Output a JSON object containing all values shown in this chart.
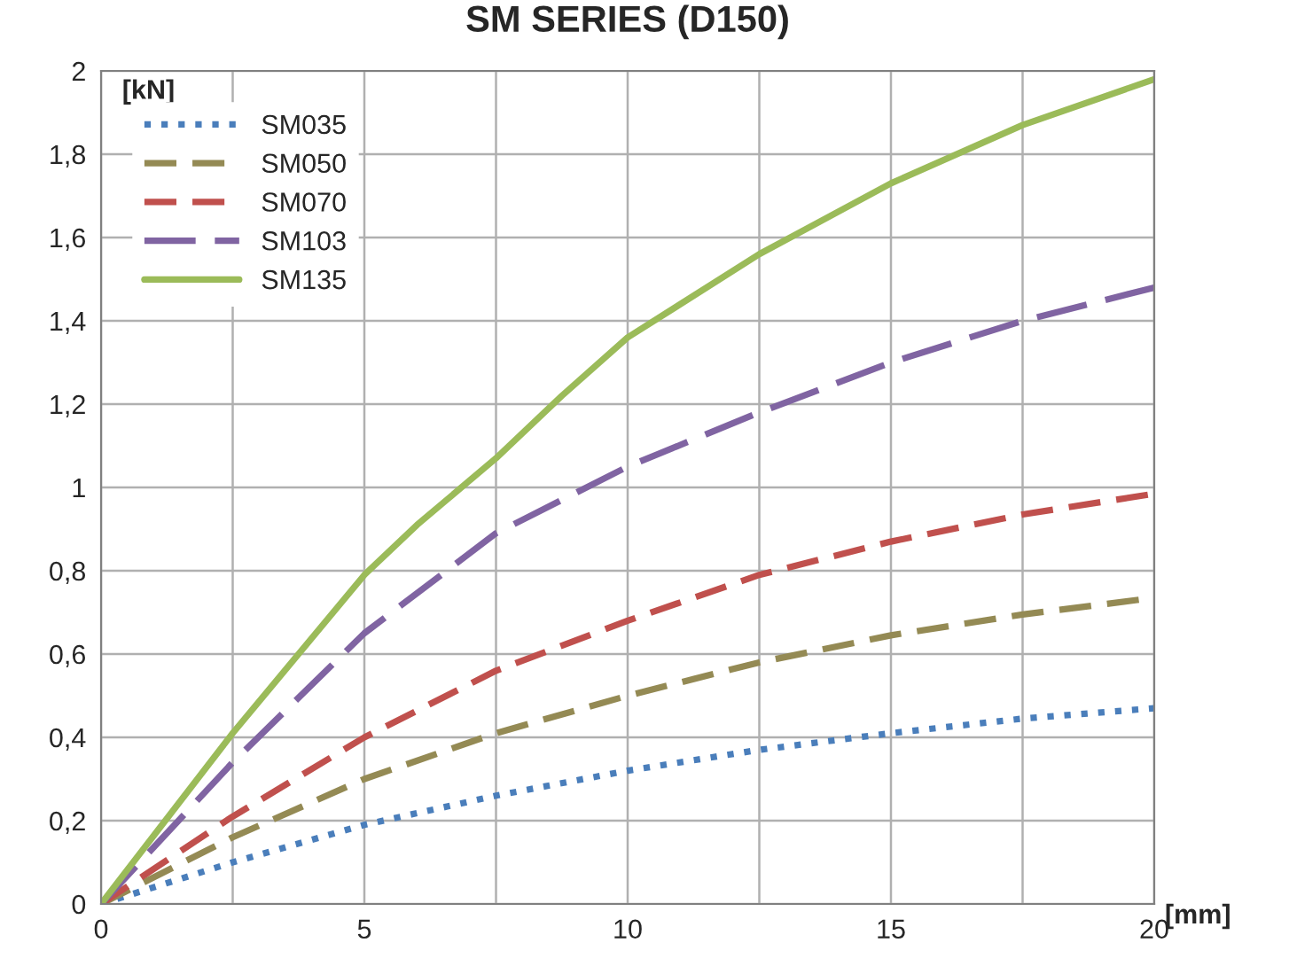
{
  "chart_data": {
    "type": "line",
    "title": "SM SERIES (D150)",
    "xlabel": "[mm]",
    "ylabel": "[kN]",
    "xlim": [
      0,
      20
    ],
    "xticks": [
      0,
      {
        "value": 2.5,
        "label": null
      },
      5,
      {
        "value": 7.5,
        "label": null
      },
      10,
      {
        "value": 12.5,
        "label": null
      },
      15,
      {
        "value": 17.5,
        "label": null
      },
      20
    ],
    "ylim": [
      0,
      2
    ],
    "yticks": [
      0,
      {
        "value": 0.2,
        "label": "0,2"
      },
      {
        "value": 0.4,
        "label": "0,4"
      },
      {
        "value": 0.6,
        "label": "0,6"
      },
      {
        "value": 0.8,
        "label": "0,8"
      },
      1,
      {
        "value": 1.2,
        "label": "1,2"
      },
      {
        "value": 1.4,
        "label": "1,4"
      },
      {
        "value": 1.6,
        "label": "1,6"
      },
      {
        "value": 1.8,
        "label": "1,8"
      },
      2
    ],
    "grid": true,
    "legend": "top left",
    "marker": "none",
    "series": [
      {
        "name": "SM035",
        "color": "#4a7ebb",
        "line_style": "dotted",
        "x": [
          0,
          2.5,
          5,
          7.5,
          10,
          12.5,
          15,
          17.5,
          20
        ],
        "values": [
          0,
          0.1,
          0.19,
          0.26,
          0.32,
          0.37,
          0.41,
          0.445,
          0.47
        ]
      },
      {
        "name": "SM050",
        "color": "#948a54",
        "line_style": "dashed",
        "x": [
          0,
          2.5,
          5,
          7.5,
          10,
          12.5,
          15,
          17.5,
          20
        ],
        "values": [
          0,
          0.16,
          0.3,
          0.41,
          0.5,
          0.58,
          0.645,
          0.695,
          0.735
        ]
      },
      {
        "name": "SM070",
        "color": "#c0504d",
        "line_style": "dashed",
        "x": [
          0,
          2.5,
          5,
          7.5,
          10,
          12.5,
          15,
          17.5,
          20
        ],
        "values": [
          0,
          0.21,
          0.4,
          0.56,
          0.68,
          0.79,
          0.87,
          0.935,
          0.985
        ]
      },
      {
        "name": "SM103",
        "color": "#8064a2",
        "line_style": "dashed",
        "x": [
          0,
          2.5,
          5,
          7.5,
          10,
          12.5,
          15,
          17.5,
          20
        ],
        "values": [
          0,
          0.34,
          0.65,
          0.89,
          1.05,
          1.18,
          1.3,
          1.4,
          1.48
        ]
      },
      {
        "name": "SM135",
        "color": "#9bbb59",
        "line_style": "solid",
        "x": [
          0,
          2.5,
          5,
          6,
          7.5,
          8.75,
          10,
          12.5,
          15,
          17.5,
          20
        ],
        "values": [
          0,
          0.41,
          0.79,
          0.91,
          1.07,
          1.22,
          1.36,
          1.56,
          1.73,
          1.87,
          1.98
        ]
      }
    ]
  }
}
